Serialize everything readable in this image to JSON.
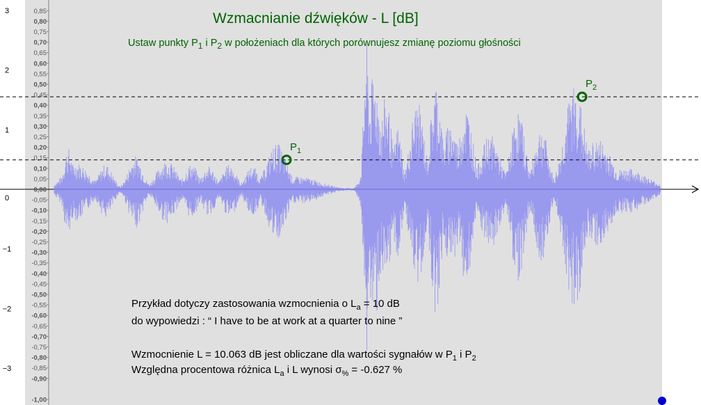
{
  "header": {
    "title": "Wzmacnianie dźwięków -  L [dB]",
    "subtitle": {
      "pre": "Ustaw punkty P",
      "sub1": "1",
      "mid": " i P",
      "sub2": "2",
      "post": " w położeniach dla których  porównujesz zmianę poziomu głośności"
    }
  },
  "points": {
    "p1": {
      "name": "P",
      "sub": "1",
      "value": 0.14
    },
    "p2": {
      "name": "P",
      "sub": "2",
      "value": 0.44
    }
  },
  "axes": {
    "outer_y_ticks": [
      "3",
      "2",
      "1",
      "0",
      "−1",
      "−2",
      "−3"
    ],
    "amp_ticks": [
      "0,85",
      "0,80",
      "0,75",
      "0,70",
      "0,65",
      "0,60",
      "0,55",
      "0,50",
      "0,45",
      "0,40",
      "0,35",
      "0,30",
      "0,25",
      "0,20",
      "0,15",
      "0,10",
      "0,05",
      "0,00",
      "-0,05",
      "-0,10",
      "-0,15",
      "-0,20",
      "-0,25",
      "-0,30",
      "-0,35",
      "-0,40",
      "-0,45",
      "-0,50",
      "-0,55",
      "-0,60",
      "-0,65",
      "-0,70",
      "-0,75",
      "-0,80",
      "-0,85",
      "-0,90",
      "-1,00"
    ]
  },
  "info": {
    "line1": {
      "pre": "Przykład dotyczy zastosowania wzmocnienia o L",
      "sub": "a",
      "post": " = 10 dB"
    },
    "line2": "do wypowiedzi :  “ I have to be at work at a quarter to nine ”",
    "line3": {
      "pre": "Wzmocnienie L =  10.063  dB jest obliczane dla wartości sygnałów w  P",
      "sub1": "1",
      "mid": " i P",
      "sub2": "2"
    },
    "line4": {
      "pre": "Względna procentowa różnica L",
      "sub1": "a",
      "mid": " i L wynosi σ",
      "sub2": "%",
      "post": " = -0.627 %"
    }
  },
  "colors": {
    "waveform": "#9999ee",
    "accent": "#006400",
    "handle": "#0000cc"
  }
}
